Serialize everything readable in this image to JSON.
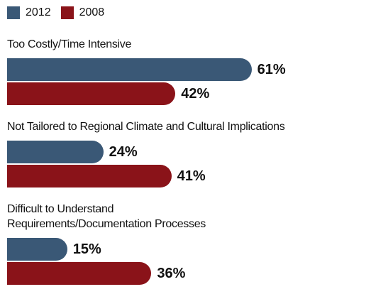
{
  "chart_data": {
    "type": "bar",
    "orientation": "horizontal",
    "categories": [
      "Too Costly/Time Intensive",
      "Not Tailored to Regional Climate and Cultural Implications",
      "Difficult to Understand\nRequirements/Documentation Processes"
    ],
    "series": [
      {
        "name": "2012",
        "color": "#3a5876",
        "values": [
          61,
          24,
          15
        ],
        "value_labels": [
          "61%",
          "24%",
          "15%"
        ]
      },
      {
        "name": "2008",
        "color": "#8a1319",
        "values": [
          42,
          41,
          36
        ],
        "value_labels": [
          "42%",
          "41%",
          "36%"
        ]
      }
    ]
  }
}
